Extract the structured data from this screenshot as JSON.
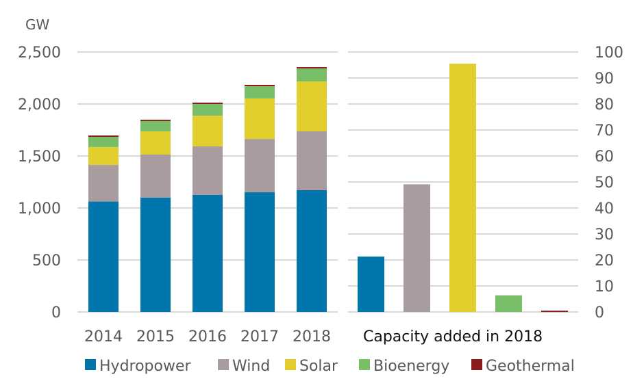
{
  "chart_data": [
    {
      "type": "bar",
      "stacked": true,
      "title": "",
      "ylabel": "GW",
      "xlabel": "",
      "ylim": [
        0,
        2500
      ],
      "yticks": [
        0,
        500,
        1000,
        1500,
        2000,
        2500
      ],
      "ytick_labels": [
        "0",
        "500",
        "1,000",
        "1,500",
        "2,000",
        "2,500"
      ],
      "grid": true,
      "categories": [
        "2014",
        "2015",
        "2016",
        "2017",
        "2018"
      ],
      "series": [
        {
          "name": "Hydropower",
          "color": "#0076AC",
          "values": [
            1062,
            1099,
            1125,
            1151,
            1171
          ]
        },
        {
          "name": "Wind",
          "color": "#A89C9E",
          "values": [
            352,
            414,
            467,
            513,
            566
          ]
        },
        {
          "name": "Solar",
          "color": "#E2CF2E",
          "values": [
            172,
            224,
            296,
            389,
            480
          ]
        },
        {
          "name": "Bioenergy",
          "color": "#78BE68",
          "values": [
            98,
            99,
            112,
            118,
            125
          ]
        },
        {
          "name": "Geothermal",
          "color": "#8B1A1A",
          "values": [
            13,
            13,
            13,
            13,
            13
          ]
        }
      ]
    },
    {
      "type": "bar",
      "stacked": false,
      "title": "Capacity added in 2018",
      "ylabel": "",
      "xlabel": "Capacity added in 2018",
      "ylim": [
        0,
        100
      ],
      "yticks": [
        0,
        10,
        20,
        30,
        40,
        50,
        60,
        70,
        80,
        90,
        100
      ],
      "ytick_labels": [
        "0",
        "10",
        "20",
        "30",
        "40",
        "50",
        "60",
        "70",
        "80",
        "90",
        "100"
      ],
      "axis_side": "right",
      "grid": true,
      "categories": [
        "Hydropower",
        "Wind",
        "Solar",
        "Bioenergy",
        "Geothermal"
      ],
      "values": [
        21.3,
        49.1,
        95.5,
        6.4,
        0.5
      ],
      "colors": [
        "#0076AC",
        "#A89C9E",
        "#E2CF2E",
        "#78BE68",
        "#8B1A1A"
      ]
    }
  ],
  "legend": {
    "placement": "bottom",
    "items": [
      {
        "label": "Hydropower",
        "color": "#0076AC"
      },
      {
        "label": "Wind",
        "color": "#A89C9E"
      },
      {
        "label": "Solar",
        "color": "#E2CF2E"
      },
      {
        "label": "Bioenergy",
        "color": "#78BE68"
      },
      {
        "label": "Geothermal",
        "color": "#8B1A1A"
      }
    ]
  }
}
